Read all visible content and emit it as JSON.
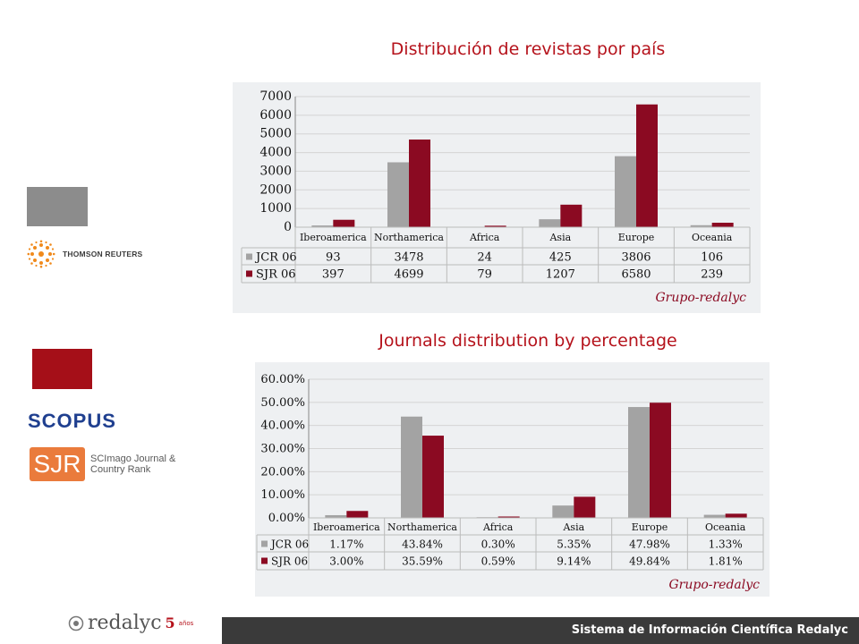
{
  "slide": {
    "title_count": "Distribución de revistas por país",
    "title_percentage": "Journals distribution by percentage"
  },
  "logos": {
    "thomson_reuters": "THOMSON REUTERS",
    "scopus": "SCOPUS",
    "sjr_abbr": "SJR",
    "sjr_desc": "SCImago Journal & Country Rank",
    "grupo_redalyc": "Grupo-redalyc",
    "redalyc": "redalyc",
    "redalyc_years": "5",
    "redalyc_anos": "años"
  },
  "footer": {
    "text": "Sistema de Información Científica Redalyc"
  },
  "colors": {
    "jcr": "#a3a3a3",
    "sjr": "#8b0a22",
    "accent": "#b5121b"
  },
  "chart_data": [
    {
      "type": "bar",
      "categories": [
        "Iberoamerica",
        "Northamerica",
        "Africa",
        "Asia",
        "Europe",
        "Oceania"
      ],
      "series": [
        {
          "name": "JCR 06",
          "values": [
            93,
            3478,
            24,
            425,
            3806,
            106
          ],
          "labels": [
            "93",
            "3478",
            "24",
            "425",
            "3806",
            "106"
          ]
        },
        {
          "name": "SJR 06",
          "values": [
            397,
            4699,
            79,
            1207,
            6580,
            239
          ],
          "labels": [
            "397",
            "4699",
            "79",
            "1207",
            "6580",
            "239"
          ]
        }
      ],
      "yticks": [
        "0",
        "1000",
        "2000",
        "3000",
        "4000",
        "5000",
        "6000",
        "7000"
      ],
      "ylim": [
        0,
        7000
      ],
      "grid": true,
      "legend": "data-table"
    },
    {
      "type": "bar",
      "categories": [
        "Iberoamerica",
        "Northamerica",
        "Africa",
        "Asia",
        "Europe",
        "Oceania"
      ],
      "series": [
        {
          "name": "JCR 06",
          "values": [
            1.17,
            43.84,
            0.3,
            5.35,
            47.98,
            1.33
          ],
          "labels": [
            "1.17%",
            "43.84%",
            "0.30%",
            "5.35%",
            "47.98%",
            "1.33%"
          ]
        },
        {
          "name": "SJR 06",
          "values": [
            3.0,
            35.59,
            0.59,
            9.14,
            49.84,
            1.81
          ],
          "labels": [
            "3.00%",
            "35.59%",
            "0.59%",
            "9.14%",
            "49.84%",
            "1.81%"
          ]
        }
      ],
      "yticks": [
        "0.00%",
        "10.00%",
        "20.00%",
        "30.00%",
        "40.00%",
        "50.00%",
        "60.00%"
      ],
      "ylim": [
        0,
        60
      ],
      "grid": true,
      "legend": "data-table"
    }
  ]
}
